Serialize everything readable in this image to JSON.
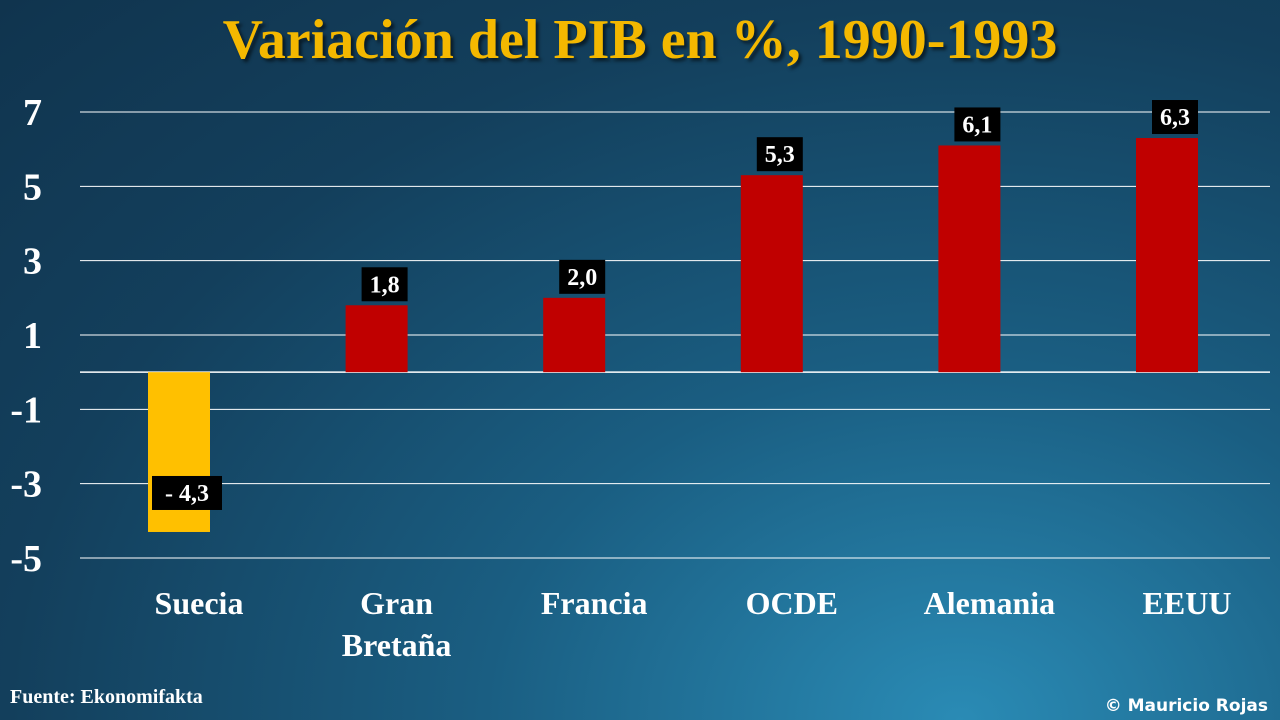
{
  "title": "Variación del PIB en %, 1990-1993",
  "source": "Fuente: Ekonomifakta",
  "copyright": "© Mauricio Rojas",
  "colors": {
    "title": "#f4b800",
    "bar_negative": "#ffc000",
    "bar_positive": "#c00000",
    "label_bg": "#000000",
    "grid": "#ffffff"
  },
  "chart_data": {
    "type": "bar",
    "categories": [
      [
        "Suecia"
      ],
      [
        "Gran",
        "Bretaña"
      ],
      [
        "Francia"
      ],
      [
        "OCDE"
      ],
      [
        "Alemania"
      ],
      [
        "EEUU"
      ]
    ],
    "values": [
      -4.3,
      1.8,
      2.0,
      5.3,
      6.1,
      6.3
    ],
    "data_labels": [
      "- 4,3",
      "1,8",
      "2,0",
      "5,3",
      "6,1",
      "6,3"
    ],
    "yticks": [
      7,
      5,
      3,
      1,
      -1,
      -3,
      -5
    ],
    "ytick_labels": [
      "7",
      "5",
      "3",
      "1",
      "-1",
      "-3",
      "-5"
    ],
    "ylim": [
      -5,
      7
    ],
    "grid": true
  }
}
